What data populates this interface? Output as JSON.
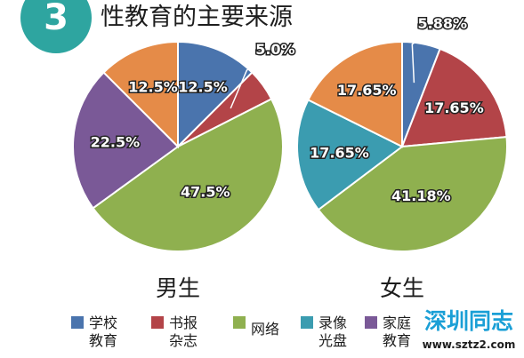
{
  "header": {
    "badge": "3",
    "title": "性教育的主要来源"
  },
  "colors": {
    "学校教育": "#4a74ad",
    "书报杂志": "#b34448",
    "网络": "#8fb04f",
    "录像光盘": "#3b9cb0",
    "家庭教育": "#7a5997",
    "other": "#e58b48",
    "badge": "#2ea5a0"
  },
  "legend": [
    {
      "key": "学校教育",
      "line1": "学校",
      "line2": "教育"
    },
    {
      "key": "书报杂志",
      "line1": "书报",
      "line2": "杂志"
    },
    {
      "key": "网络",
      "line1": "网络",
      "line2": ""
    },
    {
      "key": "录像光盘",
      "line1": "录像",
      "line2": "光盘"
    },
    {
      "key": "家庭教育",
      "line1": "家庭",
      "line2": "教育"
    }
  ],
  "chart_data": [
    {
      "type": "pie",
      "label": "男生",
      "slices": [
        {
          "key": "学校教育",
          "value": 12.5,
          "label": "12.5%"
        },
        {
          "key": "书报杂志",
          "value": 5.0,
          "label": "5.0%"
        },
        {
          "key": "网络",
          "value": 47.5,
          "label": "47.5%"
        },
        {
          "key": "家庭教育",
          "value": 22.5,
          "label": "22.5%"
        },
        {
          "key": "other",
          "value": 12.5,
          "label": "12.5%"
        }
      ]
    },
    {
      "type": "pie",
      "label": "女生",
      "slices": [
        {
          "key": "学校教育",
          "value": 5.88,
          "label": "5.88%"
        },
        {
          "key": "书报杂志",
          "value": 17.65,
          "label": "17.65%"
        },
        {
          "key": "网络",
          "value": 41.18,
          "label": "41.18%"
        },
        {
          "key": "录像光盘",
          "value": 17.65,
          "label": "17.65%"
        },
        {
          "key": "other",
          "value": 17.65,
          "label": "17.65%"
        }
      ]
    }
  ],
  "watermark": {
    "main": "深圳同志",
    "sub": "www.sztz2.com"
  }
}
